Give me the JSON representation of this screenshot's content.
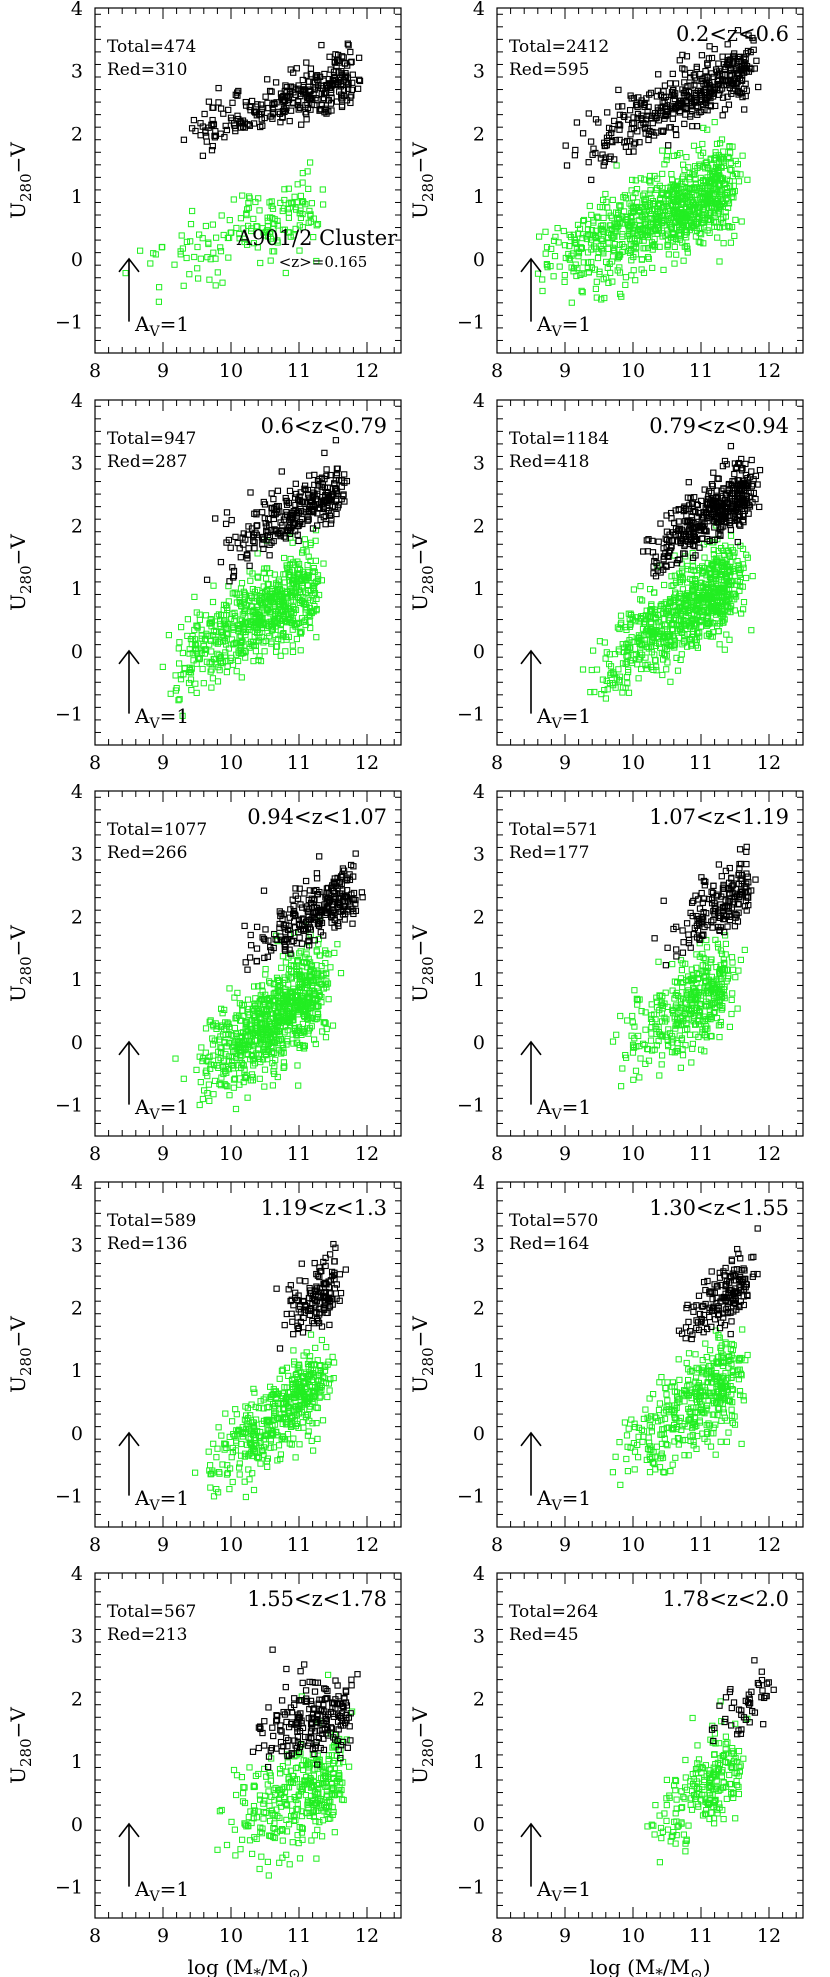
{
  "colors": {
    "red_sequence": "#000000",
    "blue_cloud": "#22ee22",
    "frame": "#000000"
  },
  "xlabel": "log (M*/M⊙)",
  "ylabel": "U280−V",
  "reddening_label": "AV=1",
  "chart_data": [
    {
      "type": "scatter",
      "panel": "A901/2 Cluster",
      "title": "A901/2 Cluster",
      "subtitle": "<z>=0.165",
      "total_label": "Total=474",
      "red_label": "Red=310",
      "total": 474,
      "red": 310,
      "xlim": [
        8,
        12.5
      ],
      "ylim": [
        -1.5,
        4
      ],
      "xticks": [
        8,
        9,
        10,
        11,
        12
      ],
      "yticks": [
        -1,
        0,
        1,
        2,
        3,
        4
      ],
      "arrow": {
        "x": 8.5,
        "y0": -1,
        "y1": 0
      },
      "red_seq": {
        "x0": 8.6,
        "x1": 11.8,
        "slope": 0.4,
        "intercept": -2.0,
        "sd": 0.25,
        "offset": 0.55
      },
      "blue_cloud": {
        "x0": 8.0,
        "x1": 11.3,
        "slope": 0.35,
        "intercept": -3.1,
        "sd": 0.32
      }
    },
    {
      "type": "scatter",
      "panel": "0.2<z<0.6",
      "title": "0.2<z<0.6",
      "total_label": "Total=2412",
      "red_label": "Red=595",
      "total": 2412,
      "red": 595,
      "xlim": [
        8,
        12.5
      ],
      "ylim": [
        -1.5,
        4
      ],
      "xticks": [
        8,
        9,
        10,
        11,
        12
      ],
      "yticks": [
        -1,
        0,
        1,
        2,
        3,
        4
      ],
      "arrow": {
        "x": 8.5,
        "y0": -1,
        "y1": 0
      },
      "red_seq": {
        "x0": 8.3,
        "x1": 11.7,
        "slope": 0.55,
        "intercept": -3.6,
        "sd": 0.28,
        "offset": 0.6
      },
      "blue_cloud": {
        "x0": 8.0,
        "x1": 11.4,
        "slope": 0.45,
        "intercept": -4.0,
        "sd": 0.38
      }
    },
    {
      "type": "scatter",
      "panel": "0.6<z<0.79",
      "title": "0.6<z<0.79",
      "total_label": "Total=947",
      "red_label": "Red=287",
      "total": 947,
      "red": 287,
      "xlim": [
        8,
        12.5
      ],
      "ylim": [
        -1.5,
        4
      ],
      "xticks": [
        8,
        9,
        10,
        11,
        12
      ],
      "yticks": [
        -1,
        0,
        1,
        2,
        3,
        4
      ],
      "arrow": {
        "x": 8.5,
        "y0": -1,
        "y1": 0
      },
      "red_seq": {
        "x0": 9.1,
        "x1": 11.6,
        "slope": 0.6,
        "intercept": -4.6,
        "sd": 0.3,
        "offset": 0.6
      },
      "blue_cloud": {
        "x0": 8.6,
        "x1": 11.2,
        "slope": 0.6,
        "intercept": -5.7,
        "sd": 0.35
      }
    },
    {
      "type": "scatter",
      "panel": "0.79<z<0.94",
      "title": "0.79<z<0.94",
      "total_label": "Total=1184",
      "red_label": "Red=418",
      "total": 1184,
      "red": 418,
      "xlim": [
        8,
        12.5
      ],
      "ylim": [
        -1.5,
        4
      ],
      "xticks": [
        8,
        9,
        10,
        11,
        12
      ],
      "yticks": [
        -1,
        0,
        1,
        2,
        3,
        4
      ],
      "arrow": {
        "x": 8.5,
        "y0": -1,
        "y1": 0
      },
      "red_seq": {
        "x0": 9.8,
        "x1": 11.7,
        "slope": 0.75,
        "intercept": -6.4,
        "sd": 0.28,
        "offset": 0.6
      },
      "blue_cloud": {
        "x0": 9.0,
        "x1": 11.5,
        "slope": 0.7,
        "intercept": -6.9,
        "sd": 0.35
      }
    },
    {
      "type": "scatter",
      "panel": "0.94<z<1.07",
      "title": "0.94<z<1.07",
      "total_label": "Total=1077",
      "red_label": "Red=266",
      "total": 1077,
      "red": 266,
      "xlim": [
        8,
        12.5
      ],
      "ylim": [
        -1.5,
        4
      ],
      "xticks": [
        8,
        9,
        10,
        11,
        12
      ],
      "yticks": [
        -1,
        0,
        1,
        2,
        3,
        4
      ],
      "arrow": {
        "x": 8.5,
        "y0": -1,
        "y1": 0
      },
      "red_seq": {
        "x0": 9.7,
        "x1": 11.8,
        "slope": 0.6,
        "intercept": -4.9,
        "sd": 0.28,
        "offset": 0.6
      },
      "blue_cloud": {
        "x0": 9.0,
        "x1": 11.3,
        "slope": 0.75,
        "intercept": -7.6,
        "sd": 0.38
      }
    },
    {
      "type": "scatter",
      "panel": "1.07<z<1.19",
      "title": "1.07<z<1.19",
      "total_label": "Total=571",
      "red_label": "Red=177",
      "total": 571,
      "red": 177,
      "xlim": [
        8,
        12.5
      ],
      "ylim": [
        -1.5,
        4
      ],
      "xticks": [
        8,
        9,
        10,
        11,
        12
      ],
      "yticks": [
        -1,
        0,
        1,
        2,
        3,
        4
      ],
      "arrow": {
        "x": 8.5,
        "y0": -1,
        "y1": 0
      },
      "red_seq": {
        "x0": 10.0,
        "x1": 11.7,
        "slope": 0.75,
        "intercept": -6.5,
        "sd": 0.3,
        "offset": 0.6
      },
      "blue_cloud": {
        "x0": 9.4,
        "x1": 11.4,
        "slope": 0.7,
        "intercept": -7.0,
        "sd": 0.38
      }
    },
    {
      "type": "scatter",
      "panel": "1.19<z<1.3",
      "title": "1.19<z<1.3",
      "total_label": "Total=589",
      "red_label": "Red=136",
      "total": 589,
      "red": 136,
      "xlim": [
        8,
        12.5
      ],
      "ylim": [
        -1.5,
        4
      ],
      "xticks": [
        8,
        9,
        10,
        11,
        12
      ],
      "yticks": [
        -1,
        0,
        1,
        2,
        3,
        4
      ],
      "arrow": {
        "x": 8.5,
        "y0": -1,
        "y1": 0
      },
      "red_seq": {
        "x0": 10.5,
        "x1": 11.5,
        "slope": 0.7,
        "intercept": -6.0,
        "sd": 0.3,
        "offset": 0.6
      },
      "blue_cloud": {
        "x0": 9.3,
        "x1": 11.3,
        "slope": 0.85,
        "intercept": -8.8,
        "sd": 0.35
      }
    },
    {
      "type": "scatter",
      "panel": "1.30<z<1.55",
      "title": "1.30<z<1.55",
      "total_label": "Total=570",
      "red_label": "Red=164",
      "total": 570,
      "red": 164,
      "xlim": [
        8,
        12.5
      ],
      "ylim": [
        -1.5,
        4
      ],
      "xticks": [
        8,
        9,
        10,
        11,
        12
      ],
      "yticks": [
        -1,
        0,
        1,
        2,
        3,
        4
      ],
      "arrow": {
        "x": 8.5,
        "y0": -1,
        "y1": 0
      },
      "red_seq": {
        "x0": 10.3,
        "x1": 11.7,
        "slope": 0.7,
        "intercept": -6.0,
        "sd": 0.3,
        "offset": 0.6
      },
      "blue_cloud": {
        "x0": 9.3,
        "x1": 11.5,
        "slope": 0.7,
        "intercept": -7.2,
        "sd": 0.38
      }
    },
    {
      "type": "scatter",
      "panel": "1.55<z<1.78",
      "title": "1.55<z<1.78",
      "total_label": "Total=567",
      "red_label": "Red=213",
      "total": 567,
      "red": 213,
      "xlim": [
        8,
        12.5
      ],
      "ylim": [
        -1.5,
        4
      ],
      "xticks": [
        8,
        9,
        10,
        11,
        12
      ],
      "yticks": [
        -1,
        0,
        1,
        2,
        3,
        4
      ],
      "arrow": {
        "x": 8.5,
        "y0": -1,
        "y1": 0
      },
      "red_seq": {
        "x0": 9.9,
        "x1": 11.7,
        "slope": 0.25,
        "intercept": -1.4,
        "sd": 0.38,
        "offset": 0.5
      },
      "blue_cloud": {
        "x0": 9.5,
        "x1": 11.6,
        "slope": 0.45,
        "intercept": -4.5,
        "sd": 0.42
      }
    },
    {
      "type": "scatter",
      "panel": "1.78<z<2.0",
      "title": "1.78<z<2.0",
      "total_label": "Total=264",
      "red_label": "Red=45",
      "total": 264,
      "red": 45,
      "xlim": [
        8,
        12.5
      ],
      "ylim": [
        -1.5,
        4
      ],
      "xticks": [
        8,
        9,
        10,
        11,
        12
      ],
      "yticks": [
        -1,
        0,
        1,
        2,
        3,
        4
      ],
      "arrow": {
        "x": 8.5,
        "y0": -1,
        "y1": 0
      },
      "red_seq": {
        "x0": 10.8,
        "x1": 12.0,
        "slope": 0.6,
        "intercept": -5.3,
        "sd": 0.28,
        "offset": 0.5
      },
      "blue_cloud": {
        "x0": 10.0,
        "x1": 11.5,
        "slope": 0.95,
        "intercept": -9.9,
        "sd": 0.35
      }
    }
  ]
}
